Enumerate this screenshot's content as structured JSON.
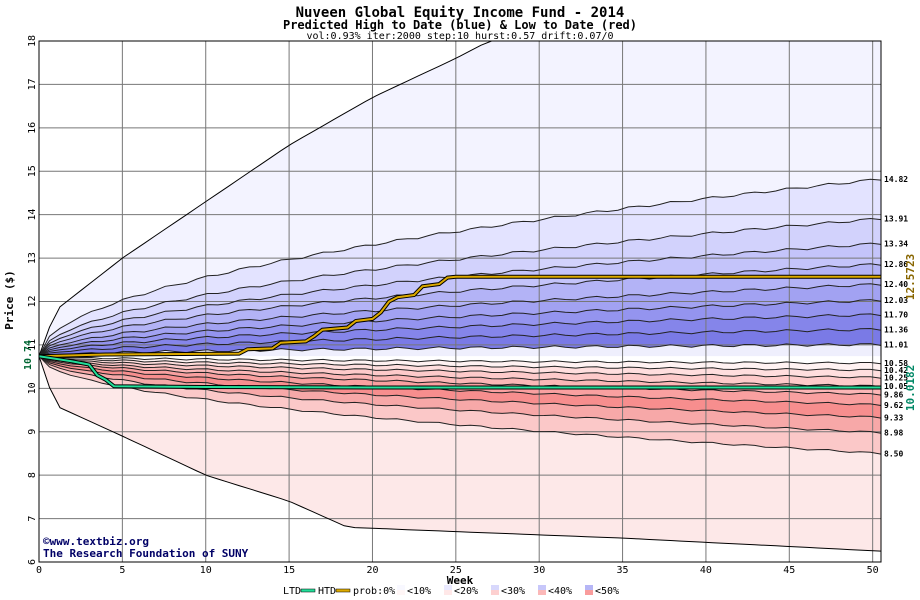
{
  "chart_data": {
    "type": "area",
    "title": "Nuveen Global Equity Income Fund - 2014",
    "subtitle": "Predicted High to Date (blue) &  Low to Date (red)",
    "params": "vol:0.93% iter:2000 step:10 hurst:0.57 drift:0.07/0",
    "xlabel": "Week",
    "ylabel": "Price ($)",
    "xlim": [
      0,
      50.5
    ],
    "ylim": [
      6,
      18
    ],
    "x_ticks": [
      0,
      5,
      10,
      15,
      20,
      25,
      30,
      35,
      40,
      45,
      50
    ],
    "y_ticks": [
      6,
      7,
      8,
      9,
      10,
      11,
      12,
      13,
      14,
      15,
      16,
      17,
      18
    ],
    "grid": true,
    "start_price": 10.74,
    "start_label": "10.74",
    "high_quantiles": [
      {
        "label": "14.82",
        "end": 14.82
      },
      {
        "label": "13.91",
        "end": 13.91
      },
      {
        "label": "13.34",
        "end": 13.34
      },
      {
        "label": "12.86",
        "end": 12.86
      },
      {
        "label": "12.40",
        "end": 12.4
      },
      {
        "label": "12.03",
        "end": 12.03
      },
      {
        "label": "11.70",
        "end": 11.7
      },
      {
        "label": "11.36",
        "end": 11.36
      },
      {
        "label": "11.01",
        "end": 11.01
      }
    ],
    "low_quantiles": [
      {
        "label": "10.58",
        "end": 10.58
      },
      {
        "label": "10.42",
        "end": 10.42
      },
      {
        "label": "10.25",
        "end": 10.25
      },
      {
        "label": "10.05",
        "end": 10.05
      },
      {
        "label": "9.86",
        "end": 9.86
      },
      {
        "label": "9.62",
        "end": 9.62
      },
      {
        "label": "9.33",
        "end": 9.33
      },
      {
        "label": "8.98",
        "end": 8.98
      },
      {
        "label": "8.50",
        "end": 8.5
      }
    ],
    "outer_high_path": [
      [
        0,
        10.74
      ],
      [
        1,
        11.8
      ],
      [
        5,
        13.0
      ],
      [
        10,
        14.3
      ],
      [
        15,
        15.6
      ],
      [
        20,
        16.7
      ],
      [
        25,
        17.6
      ],
      [
        27,
        18.0
      ],
      [
        50.5,
        18.0
      ]
    ],
    "outer_low_path": [
      [
        0,
        10.74
      ],
      [
        1,
        9.6
      ],
      [
        5,
        8.9
      ],
      [
        10,
        8.0
      ],
      [
        15,
        7.4
      ],
      [
        18.5,
        6.8
      ],
      [
        25,
        6.7
      ],
      [
        35,
        6.55
      ],
      [
        50.5,
        6.25
      ]
    ],
    "htd_series": {
      "name": "HTD",
      "color": "#ddaa00",
      "points": [
        [
          0,
          10.74
        ],
        [
          4,
          10.78
        ],
        [
          12,
          10.8
        ],
        [
          12.5,
          10.9
        ],
        [
          14,
          10.92
        ],
        [
          14.5,
          11.05
        ],
        [
          16,
          11.08
        ],
        [
          16.5,
          11.2
        ],
        [
          17,
          11.35
        ],
        [
          18.5,
          11.4
        ],
        [
          19,
          11.55
        ],
        [
          20,
          11.6
        ],
        [
          20.5,
          11.75
        ],
        [
          21,
          12.0
        ],
        [
          21.5,
          12.1
        ],
        [
          22.5,
          12.15
        ],
        [
          23,
          12.35
        ],
        [
          24,
          12.4
        ],
        [
          24.5,
          12.55
        ],
        [
          25,
          12.57
        ],
        [
          50.5,
          12.57
        ]
      ]
    },
    "ltd_series": {
      "name": "LTD",
      "color": "#22dd99",
      "points": [
        [
          0,
          10.74
        ],
        [
          2,
          10.62
        ],
        [
          3,
          10.55
        ],
        [
          3.5,
          10.3
        ],
        [
          4,
          10.2
        ],
        [
          4.5,
          10.05
        ],
        [
          10,
          10.03
        ],
        [
          20,
          10.02
        ],
        [
          50.5,
          10.02
        ]
      ]
    },
    "htd_current_label": "12.5723",
    "ltd_current_label": "10.0182",
    "legend": {
      "placement": "bottom",
      "ltd": "LTD",
      "htd": "HTD",
      "prob": "prob:0%",
      "items": [
        "<10%",
        "<20%",
        "<30%",
        "<40%",
        "<50%"
      ]
    }
  },
  "watermark": {
    "line1": "©www.textbiz.org",
    "line2": "The Research Foundation of SUNY"
  },
  "colors": {
    "grid": "#777777",
    "high_bands": [
      "#f3f3ff",
      "#e3e3ff",
      "#d2d2fc",
      "#c4c4fa",
      "#b3b3f6",
      "#a2a2f2",
      "#9494ef",
      "#8585ea",
      "#7a7ae6",
      "#efeffd"
    ],
    "low_bands": [
      "#fff0f0",
      "#ffe4e4",
      "#fdd6d6",
      "#fbc6c6",
      "#f9b4b4",
      "#f7a0a0",
      "#f58f8f",
      "#f28080",
      "#fdeaea",
      "#fff5f5"
    ],
    "htd_label": "#886600",
    "ltd_label": "#008866",
    "start_label": "#006633"
  }
}
